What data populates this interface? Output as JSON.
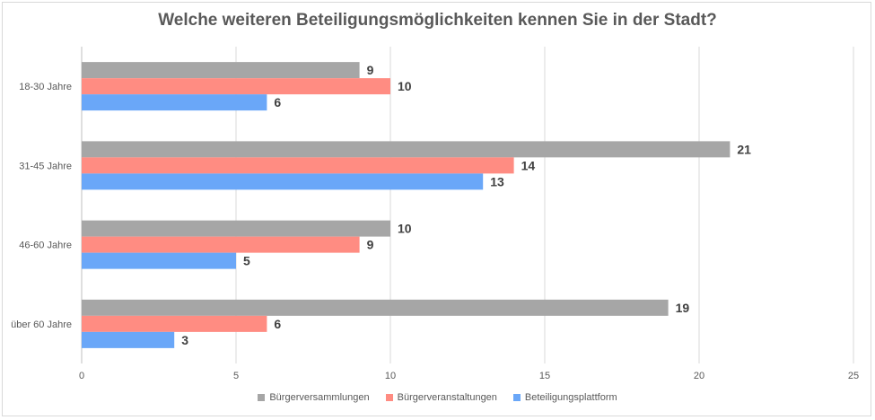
{
  "chart_data": {
    "type": "bar",
    "orientation": "horizontal",
    "title": "Welche weiteren Beteiligungsmöglichkeiten kennen Sie in der Stadt?",
    "categories": [
      "18-30 Jahre",
      "31-45 Jahre",
      "46-60 Jahre",
      "über 60 Jahre"
    ],
    "series": [
      {
        "name": "Bürgerversammlungen",
        "color": "#a6a6a6",
        "values": [
          9,
          21,
          10,
          19
        ]
      },
      {
        "name": "Bürgerveranstaltungen",
        "color": "#ff8c82",
        "values": [
          10,
          14,
          9,
          6
        ]
      },
      {
        "name": "Beteiligungsplattform",
        "color": "#6aa7f8",
        "values": [
          6,
          13,
          5,
          3
        ]
      }
    ],
    "xlim": [
      0,
      25
    ],
    "xticks": [
      "0",
      "5",
      "10",
      "15",
      "20",
      "25"
    ],
    "grid": true,
    "legend_position": "bottom"
  }
}
